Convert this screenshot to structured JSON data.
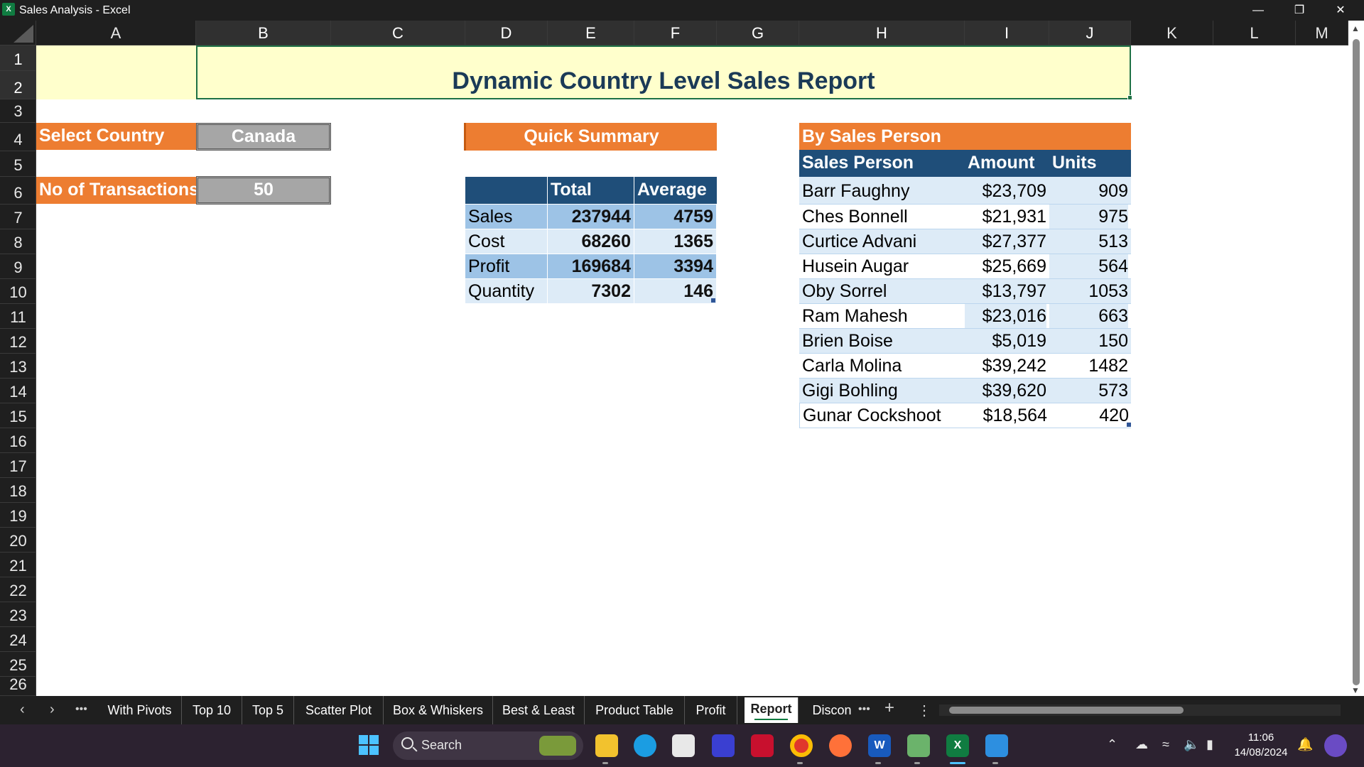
{
  "window": {
    "title": "Sales Analysis - Excel",
    "logo": "X"
  },
  "columns": [
    "A",
    "B",
    "C",
    "D",
    "E",
    "F",
    "G",
    "H",
    "I",
    "J",
    "K",
    "L",
    "M"
  ],
  "rows": [
    "1",
    "2",
    "3",
    "4",
    "5",
    "6",
    "7",
    "8",
    "9",
    "10",
    "11",
    "12",
    "13",
    "14",
    "15",
    "16",
    "17",
    "18",
    "19",
    "20",
    "21",
    "22",
    "23",
    "24",
    "25",
    "26"
  ],
  "report": {
    "title": "Dynamic Country Level Sales Report",
    "select_country_label": "Select Country",
    "select_country_value": "Canada",
    "transactions_label": "No of Transactions:",
    "transactions_value": "50"
  },
  "quick_summary": {
    "heading": "Quick Summary",
    "headers": [
      "",
      "Total",
      "Average"
    ],
    "rows": [
      {
        "label": "Sales",
        "total": "237944",
        "average": "4759"
      },
      {
        "label": "Cost",
        "total": "68260",
        "average": "1365"
      },
      {
        "label": "Profit",
        "total": "169684",
        "average": "3394"
      },
      {
        "label": "Quantity",
        "total": "7302",
        "average": "146"
      }
    ]
  },
  "by_sales_person": {
    "heading": "By Sales Person",
    "headers": [
      "Sales Person",
      "Amount",
      "Units"
    ],
    "rows": [
      {
        "name": "Barr Faughny",
        "amount": "$23,709",
        "units": "909"
      },
      {
        "name": "Ches Bonnell",
        "amount": "$21,931",
        "units": "975"
      },
      {
        "name": "Curtice Advani",
        "amount": "$27,377",
        "units": "513"
      },
      {
        "name": "Husein Augar",
        "amount": "$25,669",
        "units": "564"
      },
      {
        "name": "Oby Sorrel",
        "amount": "$13,797",
        "units": "1053"
      },
      {
        "name": "Ram Mahesh",
        "amount": "$23,016",
        "units": "663"
      },
      {
        "name": "Brien Boise",
        "amount": "$5,019",
        "units": "150"
      },
      {
        "name": "Carla Molina",
        "amount": "$39,242",
        "units": "1482"
      },
      {
        "name": "Gigi Bohling",
        "amount": "$39,620",
        "units": "573"
      },
      {
        "name": "Gunar Cockshoot",
        "amount": "$18,564",
        "units": "420"
      }
    ]
  },
  "sheet_tabs": {
    "overflow": "•••",
    "tabs": [
      "With Pivots",
      "Top 10",
      "Top 5",
      "Scatter Plot",
      "Box & Whiskers",
      "Best & Least",
      "Product Table",
      "Profit",
      "Report",
      "Discon"
    ],
    "active": "Report",
    "add": "+",
    "more": "⋮"
  },
  "taskbar": {
    "search_label": "Search",
    "time": "11:06",
    "date": "14/08/2024",
    "apps": [
      "start-icon",
      "file-explorer-icon",
      "edge-icon",
      "store-icon",
      "vscode-like-icon",
      "mcafee-icon",
      "chrome-icon",
      "firefox-icon",
      "word-icon",
      "snipping-icon",
      "excel-icon",
      "photos-icon"
    ]
  },
  "colors": {
    "orange": "#ed7d31",
    "navy": "#1f4e79",
    "band_dark": "#9dc3e6",
    "band_light": "#ddebf7",
    "title_fill": "#ffffcc",
    "excel_green": "#107c41"
  }
}
